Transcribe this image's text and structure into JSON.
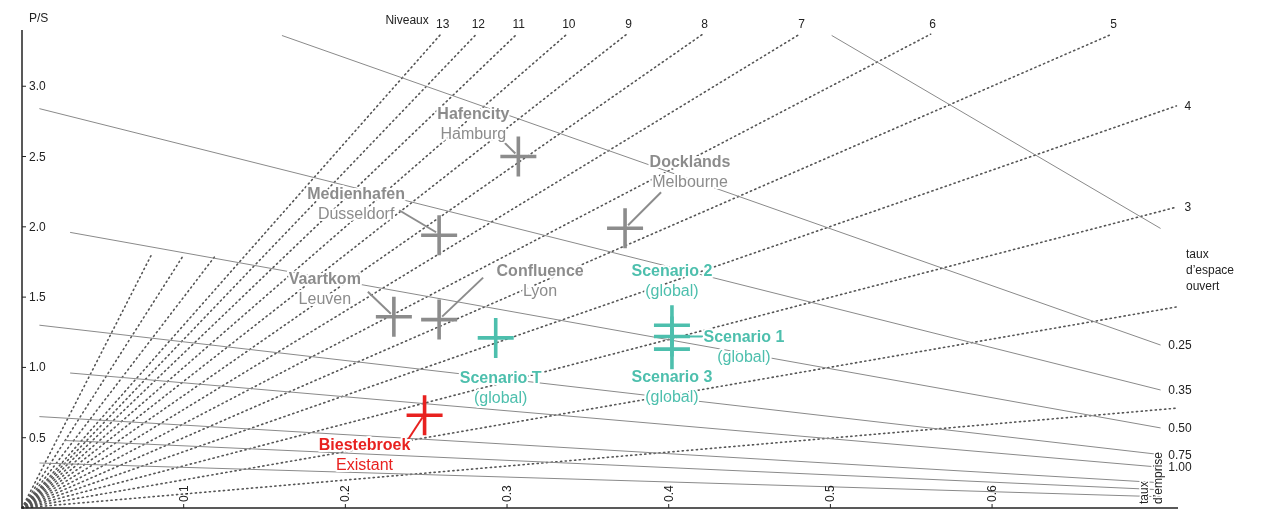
{
  "chart_data": {
    "type": "scatter",
    "ylabel": "P/S",
    "xlim": [
      0,
      0.715
    ],
    "ylim": [
      0,
      3.4
    ],
    "xticks": [
      0.1,
      0.2,
      0.3,
      0.4,
      0.5,
      0.6
    ],
    "yticks": [
      {
        "value": 0.5,
        "label": "0.5"
      },
      {
        "value": 1,
        "label": "1.0"
      },
      {
        "value": 1.5,
        "label": "1.5"
      },
      {
        "value": 2,
        "label": "2.0"
      },
      {
        "value": 2.5,
        "label": "2.5"
      },
      {
        "value": 3,
        "label": "3.0"
      }
    ],
    "grid": false,
    "series": [
      {
        "type": "line",
        "name": "13",
        "color": "#555555",
        "line_style": "dotted",
        "x": [
          0,
          0.259
        ],
        "values": [
          0,
          3.37
        ]
      },
      {
        "type": "line",
        "name": "12",
        "color": "#555555",
        "line_style": "dotted",
        "x": [
          0,
          0.281
        ],
        "values": [
          0,
          3.37
        ]
      },
      {
        "type": "line",
        "name": "11",
        "color": "#555555",
        "line_style": "dotted",
        "x": [
          0,
          0.306
        ],
        "values": [
          0,
          3.37
        ]
      },
      {
        "type": "line",
        "name": "10",
        "color": "#555555",
        "line_style": "dotted",
        "x": [
          0,
          0.337
        ],
        "values": [
          0,
          3.37
        ]
      },
      {
        "type": "line",
        "name": "9",
        "color": "#555555",
        "line_style": "dotted",
        "x": [
          0,
          0.374
        ],
        "values": [
          0,
          3.37
        ]
      },
      {
        "type": "line",
        "name": "8",
        "color": "#555555",
        "line_style": "dotted",
        "x": [
          0,
          0.421
        ],
        "values": [
          0,
          3.37
        ]
      },
      {
        "type": "line",
        "name": "7",
        "color": "#555555",
        "line_style": "dotted",
        "x": [
          0,
          0.481
        ],
        "values": [
          0,
          3.37
        ]
      },
      {
        "type": "line",
        "name": "6",
        "color": "#555555",
        "line_style": "dotted",
        "x": [
          0,
          0.562
        ],
        "values": [
          0,
          3.37
        ]
      },
      {
        "type": "line",
        "name": "5",
        "color": "#555555",
        "line_style": "dotted",
        "x": [
          0,
          0.674
        ],
        "values": [
          0,
          3.37
        ]
      },
      {
        "type": "line",
        "name": "4",
        "color": "#555555",
        "line_style": "dotted",
        "x": [
          0,
          0.714
        ],
        "values": [
          0,
          2.86
        ]
      },
      {
        "type": "line",
        "name": "3",
        "color": "#555555",
        "line_style": "dotted",
        "x": [
          0,
          0.714
        ],
        "values": [
          0,
          2.14
        ]
      },
      {
        "type": "line",
        "color": "#555555",
        "line_style": "dotted",
        "x": [
          0,
          0.714
        ],
        "values": [
          0,
          1.43
        ]
      },
      {
        "type": "line",
        "color": "#555555",
        "line_style": "dotted",
        "x": [
          0,
          0.714
        ],
        "values": [
          0,
          0.71
        ]
      },
      {
        "type": "line",
        "color": "#555555",
        "line_style": "dotted",
        "x": [
          0,
          0.12
        ],
        "values": [
          0,
          1.8
        ]
      },
      {
        "type": "line",
        "color": "#555555",
        "line_style": "dotted",
        "x": [
          0,
          0.1
        ],
        "values": [
          0,
          1.8
        ]
      },
      {
        "type": "line",
        "color": "#555555",
        "line_style": "dotted",
        "x": [
          0,
          0.08
        ],
        "values": [
          0,
          1.8
        ]
      },
      {
        "type": "line",
        "name": "0.25",
        "color": "#8a8a8a",
        "line_style": "solid",
        "x": [
          0.161,
          0.704
        ],
        "values": [
          3.36,
          1.16
        ]
      },
      {
        "type": "line",
        "color": "#8a8a8a",
        "line_style": "solid",
        "x": [
          0.501,
          0.704
        ],
        "values": [
          3.36,
          1.99
        ]
      },
      {
        "type": "line",
        "name": "0.35",
        "color": "#8a8a8a",
        "line_style": "solid",
        "x": [
          0.011,
          0.704
        ],
        "values": [
          2.84,
          0.84
        ]
      },
      {
        "type": "line",
        "name": "0.50",
        "color": "#8a8a8a",
        "line_style": "solid",
        "x": [
          0.03,
          0.704
        ],
        "values": [
          1.96,
          0.57
        ]
      },
      {
        "type": "line",
        "name": "0.75",
        "color": "#8a8a8a",
        "line_style": "solid",
        "x": [
          0.011,
          0.704
        ],
        "values": [
          1.3,
          0.38
        ]
      },
      {
        "type": "line",
        "name": "1.00",
        "color": "#8a8a8a",
        "line_style": "solid",
        "x": [
          0.03,
          0.704
        ],
        "values": [
          0.96,
          0.29
        ]
      },
      {
        "type": "line",
        "color": "#8a8a8a",
        "line_style": "solid",
        "x": [
          0.011,
          0.704
        ],
        "values": [
          0.65,
          0.18
        ]
      },
      {
        "type": "line",
        "color": "#8a8a8a",
        "line_style": "solid",
        "x": [
          0.027,
          0.704
        ],
        "values": [
          0.48,
          0.13
        ]
      },
      {
        "type": "line",
        "color": "#8a8a8a",
        "line_style": "solid",
        "x": [
          0.011,
          0.704
        ],
        "values": [
          0.32,
          0.08
        ]
      },
      {
        "marker": "cross",
        "color": "#8c8c8c",
        "x": [
          0.307,
          0.258,
          0.373,
          0.23,
          0.258
        ],
        "values": [
          2.5,
          1.94,
          1.99,
          1.36,
          1.34
        ]
      },
      {
        "marker": "cross",
        "color": "#4dbfad",
        "x": [
          0.293,
          0.402,
          0.402,
          0.402
        ],
        "values": [
          1.21,
          1.3,
          1.22,
          1.13
        ]
      },
      {
        "marker": "cross",
        "color": "#e8211f",
        "x": [
          0.249
        ],
        "values": [
          0.66
        ]
      }
    ],
    "annotations": [
      "Niveaux",
      "taux\nd’espace\nouvert",
      "taux\nd’emprise",
      {
        "text": "Hafencity\nHamburg",
        "x": 0.307,
        "y": 2.5
      },
      {
        "text": "Medienhafen\nDusseldorf",
        "x": 0.258,
        "y": 1.94
      },
      {
        "text": "Docklands\nMelbourne",
        "x": 0.373,
        "y": 1.99
      },
      {
        "text": "Vaartkom\nLeuven",
        "x": 0.23,
        "y": 1.36
      },
      {
        "text": "Confluence\nLyon",
        "x": 0.258,
        "y": 1.34
      },
      {
        "text": "Scenario T\n(global)",
        "x": 0.293,
        "y": 1.21
      },
      {
        "text": "Scenario 2\n(global)",
        "x": 0.402,
        "y": 1.3
      },
      {
        "text": "Scenario 1\n(global)",
        "x": 0.402,
        "y": 1.22
      },
      {
        "text": "Scenario 3\n(global)",
        "x": 0.402,
        "y": 1.13
      },
      {
        "text": "Biestebroek\nExistant",
        "x": 0.249,
        "y": 0.66
      }
    ]
  }
}
